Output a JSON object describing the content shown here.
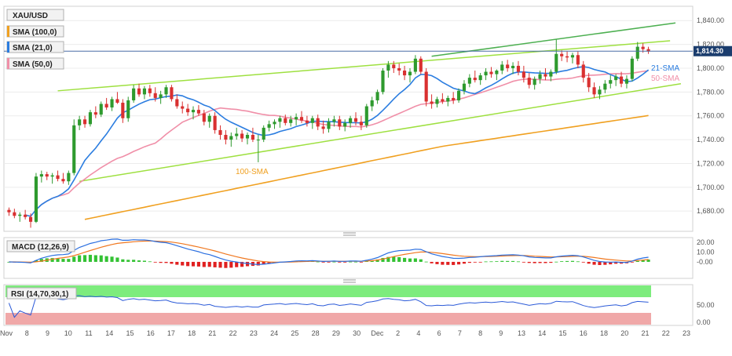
{
  "chart_data": {
    "type": "candlestick",
    "symbol": "XAU/USD",
    "legend": [
      "XAU/USD",
      "SMA (100,0)",
      "SMA (21,0)",
      "SMA (50,0)"
    ],
    "colors": {
      "sma21": "#2b7de0",
      "sma50": "#f08fa8",
      "sma100": "#f0a020",
      "up": "#2e9a2e",
      "down": "#d93030",
      "channel": "#9ee040",
      "trend": "#4caf50",
      "price_line": "#4a6fa5",
      "price_tag": "#1b3d6e",
      "macd_signal": "#f07820",
      "macd_line": "#2b6fe0",
      "rsi_line": "#2b5ad8",
      "rsi_over": "#7dec7d",
      "rsi_under": "#f0a8a8"
    },
    "price_axis": {
      "ticks": [
        "1,840.00",
        "1,820.00",
        "1,800.00",
        "1,780.00",
        "1,760.00",
        "1,740.00",
        "1,720.00",
        "1,700.00",
        "1,680.00"
      ],
      "ylim": [
        1663,
        1852
      ]
    },
    "x_axis": {
      "labels": [
        "Nov",
        "8",
        "9",
        "10",
        "11",
        "14",
        "15",
        "16",
        "17",
        "18",
        "21",
        "22",
        "23",
        "24",
        "25",
        "28",
        "29",
        "30",
        "Dec",
        "2",
        "4",
        "6",
        "7",
        "8",
        "9",
        "13",
        "14",
        "15",
        "16",
        "18",
        "20",
        "21",
        "22",
        "23"
      ]
    },
    "current_price": "1,814.30",
    "annotations": {
      "sma21": "21-SMA",
      "sma50": "50-SMA",
      "sma100": "100-SMA"
    },
    "candles": [
      [
        1681,
        1683,
        1676,
        1679
      ],
      [
        1679,
        1682,
        1674,
        1676
      ],
      [
        1676,
        1679,
        1671,
        1677
      ],
      [
        1677,
        1681,
        1673,
        1675
      ],
      [
        1675,
        1678,
        1666,
        1671
      ],
      [
        1671,
        1712,
        1670,
        1709
      ],
      [
        1709,
        1714,
        1704,
        1711
      ],
      [
        1711,
        1713,
        1706,
        1709
      ],
      [
        1709,
        1712,
        1703,
        1710
      ],
      [
        1710,
        1714,
        1705,
        1707
      ],
      [
        1707,
        1712,
        1703,
        1705
      ],
      [
        1705,
        1714,
        1702,
        1712
      ],
      [
        1712,
        1757,
        1710,
        1752
      ],
      [
        1752,
        1760,
        1748,
        1757
      ],
      [
        1757,
        1760,
        1750,
        1753
      ],
      [
        1753,
        1765,
        1751,
        1763
      ],
      [
        1763,
        1768,
        1758,
        1761
      ],
      [
        1761,
        1772,
        1759,
        1770
      ],
      [
        1770,
        1775,
        1765,
        1767
      ],
      [
        1767,
        1776,
        1764,
        1774
      ],
      [
        1774,
        1780,
        1770,
        1771
      ],
      [
        1771,
        1774,
        1754,
        1758
      ],
      [
        1758,
        1776,
        1755,
        1773
      ],
      [
        1773,
        1786,
        1771,
        1783
      ],
      [
        1783,
        1787,
        1776,
        1778
      ],
      [
        1778,
        1785,
        1774,
        1783
      ],
      [
        1783,
        1786,
        1776,
        1779
      ],
      [
        1779,
        1784,
        1772,
        1775
      ],
      [
        1775,
        1781,
        1770,
        1778
      ],
      [
        1778,
        1786,
        1775,
        1784
      ],
      [
        1784,
        1786,
        1772,
        1774
      ],
      [
        1774,
        1778,
        1766,
        1768
      ],
      [
        1768,
        1772,
        1762,
        1766
      ],
      [
        1766,
        1770,
        1760,
        1763
      ],
      [
        1763,
        1768,
        1757,
        1765
      ],
      [
        1765,
        1769,
        1760,
        1762
      ],
      [
        1762,
        1765,
        1752,
        1755
      ],
      [
        1755,
        1762,
        1750,
        1760
      ],
      [
        1760,
        1763,
        1745,
        1748
      ],
      [
        1748,
        1752,
        1740,
        1744
      ],
      [
        1744,
        1748,
        1736,
        1740
      ],
      [
        1740,
        1746,
        1734,
        1743
      ],
      [
        1743,
        1750,
        1740,
        1745
      ],
      [
        1745,
        1748,
        1738,
        1741
      ],
      [
        1741,
        1746,
        1736,
        1744
      ],
      [
        1744,
        1750,
        1738,
        1740
      ],
      [
        1740,
        1744,
        1721,
        1740
      ],
      [
        1740,
        1752,
        1738,
        1750
      ],
      [
        1750,
        1756,
        1747,
        1753
      ],
      [
        1753,
        1757,
        1749,
        1755
      ],
      [
        1755,
        1760,
        1750,
        1758
      ],
      [
        1758,
        1761,
        1752,
        1754
      ],
      [
        1754,
        1760,
        1751,
        1757
      ],
      [
        1757,
        1762,
        1752,
        1759
      ],
      [
        1759,
        1764,
        1754,
        1756
      ],
      [
        1756,
        1760,
        1751,
        1754
      ],
      [
        1754,
        1760,
        1749,
        1758
      ],
      [
        1758,
        1761,
        1748,
        1751
      ],
      [
        1751,
        1756,
        1745,
        1749
      ],
      [
        1749,
        1758,
        1746,
        1755
      ],
      [
        1755,
        1760,
        1751,
        1757
      ],
      [
        1757,
        1760,
        1748,
        1751
      ],
      [
        1751,
        1757,
        1747,
        1754
      ],
      [
        1754,
        1760,
        1750,
        1758
      ],
      [
        1758,
        1763,
        1752,
        1755
      ],
      [
        1755,
        1760,
        1748,
        1752
      ],
      [
        1752,
        1770,
        1750,
        1768
      ],
      [
        1768,
        1776,
        1764,
        1773
      ],
      [
        1773,
        1782,
        1770,
        1780
      ],
      [
        1780,
        1800,
        1778,
        1798
      ],
      [
        1798,
        1806,
        1792,
        1803
      ],
      [
        1803,
        1806,
        1796,
        1800
      ],
      [
        1800,
        1804,
        1794,
        1798
      ],
      [
        1798,
        1802,
        1790,
        1794
      ],
      [
        1794,
        1800,
        1788,
        1797
      ],
      [
        1797,
        1811,
        1795,
        1808
      ],
      [
        1808,
        1810,
        1795,
        1797
      ],
      [
        1797,
        1800,
        1768,
        1772
      ],
      [
        1772,
        1778,
        1766,
        1770
      ],
      [
        1770,
        1776,
        1767,
        1774
      ],
      [
        1774,
        1779,
        1770,
        1772
      ],
      [
        1772,
        1777,
        1768,
        1775
      ],
      [
        1775,
        1780,
        1770,
        1773
      ],
      [
        1773,
        1783,
        1771,
        1781
      ],
      [
        1781,
        1790,
        1778,
        1787
      ],
      [
        1787,
        1795,
        1784,
        1792
      ],
      [
        1792,
        1798,
        1788,
        1790
      ],
      [
        1790,
        1796,
        1786,
        1794
      ],
      [
        1794,
        1800,
        1790,
        1797
      ],
      [
        1797,
        1801,
        1792,
        1795
      ],
      [
        1795,
        1799,
        1790,
        1798
      ],
      [
        1798,
        1806,
        1795,
        1803
      ],
      [
        1803,
        1807,
        1797,
        1800
      ],
      [
        1800,
        1805,
        1795,
        1802
      ],
      [
        1802,
        1806,
        1794,
        1797
      ],
      [
        1797,
        1802,
        1788,
        1792
      ],
      [
        1792,
        1796,
        1783,
        1786
      ],
      [
        1786,
        1793,
        1782,
        1791
      ],
      [
        1791,
        1798,
        1787,
        1795
      ],
      [
        1795,
        1800,
        1790,
        1793
      ],
      [
        1793,
        1799,
        1789,
        1797
      ],
      [
        1797,
        1824,
        1795,
        1812
      ],
      [
        1812,
        1815,
        1806,
        1810
      ],
      [
        1810,
        1814,
        1805,
        1809
      ],
      [
        1809,
        1813,
        1804,
        1811
      ],
      [
        1811,
        1814,
        1800,
        1803
      ],
      [
        1803,
        1806,
        1788,
        1792
      ],
      [
        1792,
        1796,
        1780,
        1784
      ],
      [
        1784,
        1788,
        1775,
        1778
      ],
      [
        1778,
        1785,
        1774,
        1782
      ],
      [
        1782,
        1790,
        1779,
        1787
      ],
      [
        1787,
        1794,
        1783,
        1790
      ],
      [
        1790,
        1795,
        1785,
        1793
      ],
      [
        1793,
        1797,
        1784,
        1787
      ],
      [
        1787,
        1794,
        1783,
        1791
      ],
      [
        1791,
        1810,
        1789,
        1808
      ],
      [
        1808,
        1822,
        1806,
        1818
      ],
      [
        1818,
        1821,
        1813,
        1816
      ],
      [
        1816,
        1818,
        1812,
        1814
      ]
    ],
    "macd_axis": {
      "ticks": [
        "20.00",
        "10.00",
        "-0.00"
      ],
      "ylim": [
        -17,
        25
      ]
    },
    "rsi": {
      "label": "RSI (14,70,30,1)",
      "ticks": [
        "50.00",
        "0.00"
      ],
      "ylim": [
        0,
        100
      ],
      "overbought": 70,
      "oversold": 30
    },
    "macd_label": "MACD (12,26,9)"
  }
}
